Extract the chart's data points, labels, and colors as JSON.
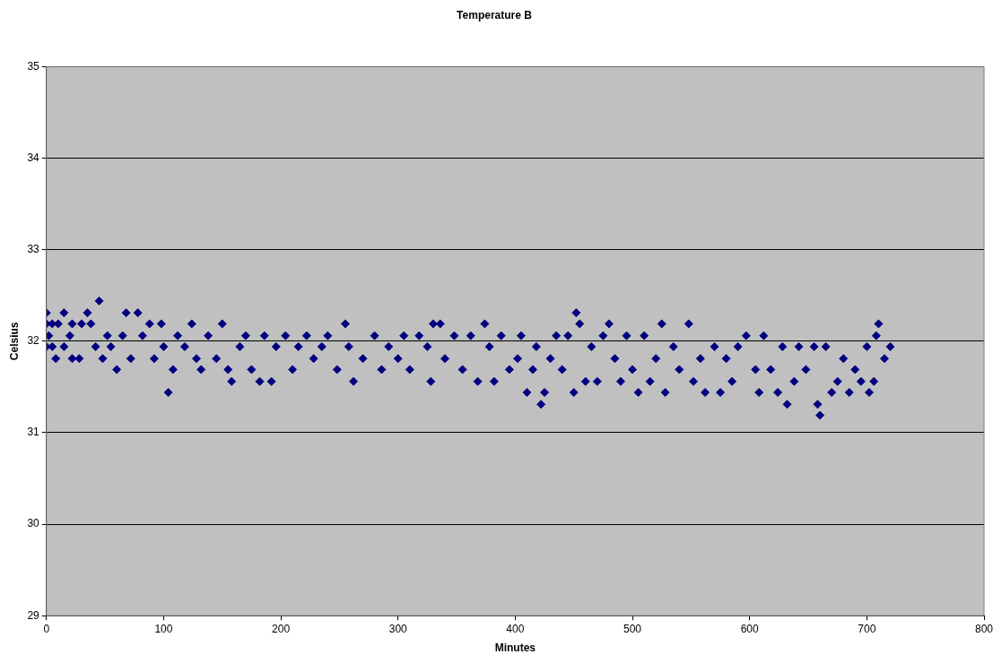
{
  "chart_data": {
    "type": "scatter",
    "title": "Temperature B",
    "xlabel": "Minutes",
    "ylabel": "Celsius",
    "x": [
      0,
      0,
      0,
      2,
      5,
      5,
      8,
      10,
      15,
      15,
      20,
      22,
      22,
      28,
      30,
      35,
      38,
      42,
      45,
      48,
      52,
      55,
      60,
      65,
      68,
      72,
      78,
      82,
      88,
      92,
      98,
      100,
      104,
      108,
      112,
      118,
      124,
      128,
      132,
      138,
      145,
      150,
      155,
      158,
      165,
      170,
      175,
      182,
      186,
      192,
      196,
      204,
      210,
      215,
      222,
      228,
      235,
      240,
      248,
      255,
      258,
      262,
      270,
      280,
      286,
      292,
      300,
      305,
      310,
      318,
      325,
      328,
      330,
      336,
      340,
      348,
      355,
      362,
      368,
      374,
      378,
      382,
      388,
      395,
      402,
      405,
      410,
      415,
      418,
      422,
      425,
      430,
      435,
      440,
      445,
      450,
      452,
      455,
      460,
      465,
      470,
      475,
      480,
      485,
      490,
      495,
      500,
      505,
      510,
      515,
      520,
      525,
      528,
      535,
      540,
      548,
      552,
      558,
      562,
      570,
      575,
      580,
      585,
      590,
      597,
      605,
      608,
      612,
      618,
      624,
      628,
      632,
      638,
      642,
      648,
      655,
      658,
      660,
      665,
      670,
      675,
      680,
      685,
      690,
      695,
      700,
      702,
      706,
      708,
      710,
      715,
      720
    ],
    "values": [
      31.94,
      32.19,
      32.31,
      32.06,
      32.19,
      31.94,
      31.81,
      32.19,
      32.31,
      31.94,
      32.06,
      32.19,
      31.81,
      31.81,
      32.19,
      32.31,
      32.19,
      31.94,
      32.44,
      31.81,
      32.06,
      31.94,
      31.69,
      32.06,
      32.31,
      31.81,
      32.31,
      32.06,
      32.19,
      31.81,
      32.19,
      31.94,
      31.44,
      31.69,
      32.06,
      31.94,
      32.19,
      31.81,
      31.69,
      32.06,
      31.81,
      32.19,
      31.69,
      31.56,
      31.94,
      32.06,
      31.69,
      31.56,
      32.06,
      31.56,
      31.94,
      32.06,
      31.69,
      31.94,
      32.06,
      31.81,
      31.94,
      32.06,
      31.69,
      32.19,
      31.94,
      31.56,
      31.81,
      32.06,
      31.69,
      31.94,
      31.81,
      32.06,
      31.69,
      32.06,
      31.94,
      31.56,
      32.19,
      32.19,
      31.81,
      32.06,
      31.69,
      32.06,
      31.56,
      32.19,
      31.94,
      31.56,
      32.06,
      31.69,
      31.81,
      32.06,
      31.44,
      31.69,
      31.94,
      31.31,
      31.44,
      31.81,
      32.06,
      31.69,
      32.06,
      31.44,
      32.31,
      32.19,
      31.56,
      31.94,
      31.56,
      32.06,
      32.19,
      31.81,
      31.56,
      32.06,
      31.69,
      31.44,
      32.06,
      31.56,
      31.81,
      32.19,
      31.44,
      31.94,
      31.69,
      32.19,
      31.56,
      31.81,
      31.44,
      31.94,
      31.44,
      31.81,
      31.56,
      31.94,
      32.06,
      31.69,
      31.44,
      32.06,
      31.69,
      31.44,
      31.94,
      31.31,
      31.56,
      31.94,
      31.69,
      31.94,
      31.31,
      31.19,
      31.94,
      31.44,
      31.56,
      31.81,
      31.44,
      31.69,
      31.56,
      31.94,
      31.44,
      31.56,
      32.06,
      32.19,
      31.81,
      31.94
    ],
    "color": "#000080",
    "marker": "diamond",
    "grid": "y",
    "legend": false,
    "xlim": [
      0,
      800
    ],
    "xticks": [
      0,
      100,
      200,
      300,
      400,
      500,
      600,
      700,
      800
    ],
    "ylim": [
      29,
      35
    ],
    "yticks": [
      29,
      30,
      31,
      32,
      33,
      34,
      35
    ]
  }
}
